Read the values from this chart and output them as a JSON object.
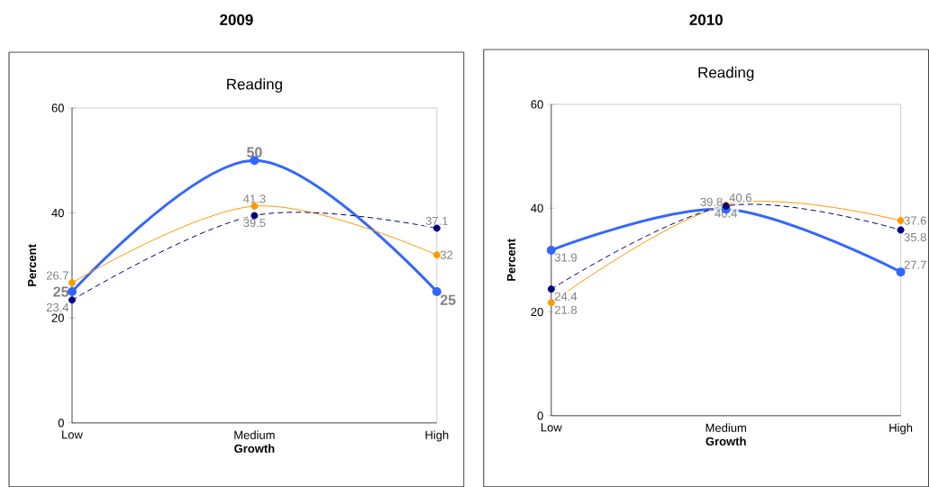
{
  "chart_data": [
    {
      "type": "line",
      "title": "2009",
      "subtitle": "Reading",
      "categories": [
        "Low",
        "Medium",
        "High"
      ],
      "xlabel": "Growth",
      "ylabel": "Percent",
      "ylim": [
        0,
        60
      ],
      "yticks": [
        0,
        20,
        40,
        60
      ],
      "marker": "circle",
      "data_labels": true,
      "series": [
        {
          "color": "#3366ff",
          "values": [
            25,
            50,
            25
          ],
          "line_style": "solid"
        },
        {
          "color": "#ff9900",
          "values": [
            26.7,
            41.3,
            32
          ],
          "line_style": "solid"
        },
        {
          "color": "#000080",
          "values": [
            23.4,
            39.5,
            37.1
          ],
          "line_style": "dashed"
        }
      ]
    },
    {
      "type": "line",
      "title": "2010",
      "subtitle": "Reading",
      "categories": [
        "Low",
        "Medium",
        "High"
      ],
      "xlabel": "Growth",
      "ylabel": "Percent",
      "ylim": [
        0,
        60
      ],
      "yticks": [
        0,
        20,
        40,
        60
      ],
      "marker": "circle",
      "data_labels": true,
      "series": [
        {
          "color": "#3366ff",
          "values": [
            31.9,
            39.8,
            27.7
          ],
          "line_style": "solid"
        },
        {
          "color": "#ff9900",
          "values": [
            21.8,
            40.6,
            37.6
          ],
          "line_style": "solid"
        },
        {
          "color": "#000080",
          "values": [
            24.4,
            40.4,
            35.8
          ],
          "line_style": "dashed"
        }
      ]
    }
  ]
}
